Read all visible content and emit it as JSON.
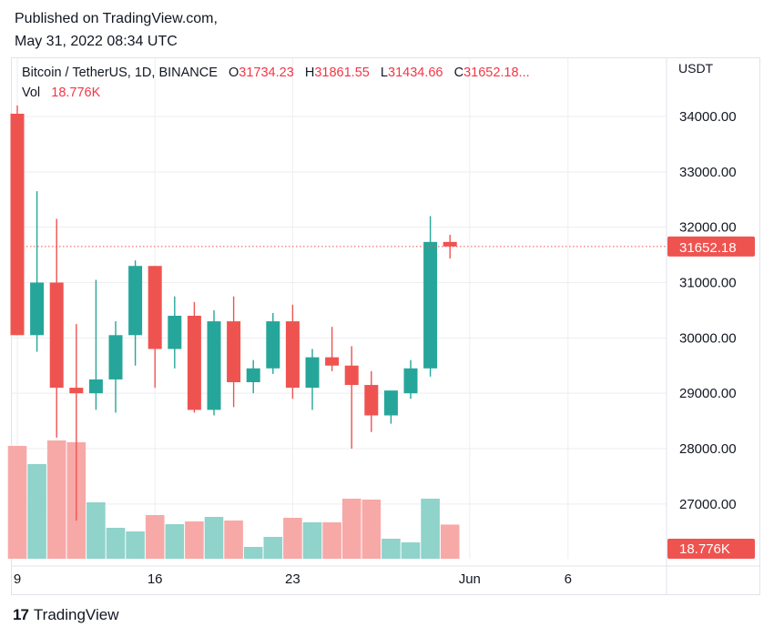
{
  "published": {
    "line1": "Published on TradingView.com,",
    "line2": "May 31, 2022 08:34 UTC"
  },
  "legend": {
    "title": "Bitcoin / TetherUS, 1D, BINANCE",
    "o_label": "O",
    "o_value": "31734.23",
    "h_label": "H",
    "h_value": "31861.55",
    "l_label": "L",
    "l_value": "31434.66",
    "c_label": "C",
    "c_value": "31652.18...",
    "vol_label": "Vol",
    "vol_value": "18.776K"
  },
  "currency": "USDT",
  "footer": {
    "brand": "TradingView",
    "brand_mark": "17"
  },
  "colors": {
    "up": "#26a69a",
    "down": "#ef5350",
    "vol_up": "#8fd3cb",
    "vol_down": "#f7a9a7",
    "grid": "#eceef2",
    "price_tag": "#ef5350"
  },
  "chart_data": {
    "type": "candlestick",
    "symbol": "Bitcoin / TetherUS",
    "interval": "1D",
    "exchange": "BINANCE",
    "ylim": [
      26000,
      34800
    ],
    "y_ticks": [
      27000,
      28000,
      29000,
      30000,
      31000,
      32000,
      33000,
      34000
    ],
    "y_tick_labels": [
      "27000.00",
      "28000.00",
      "29000.00",
      "30000.00",
      "31000.00",
      "32000.00",
      "33000.00",
      "34000.00"
    ],
    "x_ticks": [
      {
        "day": 0,
        "label": "9"
      },
      {
        "day": 7,
        "label": "16"
      },
      {
        "day": 14,
        "label": "23"
      },
      {
        "day": 23,
        "label": "Jun"
      },
      {
        "day": 28,
        "label": "6"
      }
    ],
    "last_price": 31652.18,
    "last_price_label": "31652.18",
    "last_volume_label": "18.776K",
    "candles": [
      {
        "date": "2022-05-09",
        "o": 34050,
        "h": 34200,
        "l": 30050,
        "c": 30050,
        "v": 62000
      },
      {
        "date": "2022-05-10",
        "o": 30050,
        "h": 32650,
        "l": 29750,
        "c": 31000,
        "v": 52000
      },
      {
        "date": "2022-05-11",
        "o": 31000,
        "h": 32150,
        "l": 28200,
        "c": 29100,
        "v": 65000
      },
      {
        "date": "2022-05-12",
        "o": 29100,
        "h": 30250,
        "l": 26700,
        "c": 29000,
        "v": 64000
      },
      {
        "date": "2022-05-13",
        "o": 29000,
        "h": 31050,
        "l": 28700,
        "c": 29250,
        "v": 31000
      },
      {
        "date": "2022-05-14",
        "o": 29250,
        "h": 30300,
        "l": 28650,
        "c": 30050,
        "v": 17000
      },
      {
        "date": "2022-05-15",
        "o": 30050,
        "h": 31400,
        "l": 29500,
        "c": 31300,
        "v": 15000
      },
      {
        "date": "2022-05-16",
        "o": 31300,
        "h": 31300,
        "l": 29100,
        "c": 29800,
        "v": 24000
      },
      {
        "date": "2022-05-17",
        "o": 29800,
        "h": 30750,
        "l": 29450,
        "c": 30400,
        "v": 19000
      },
      {
        "date": "2022-05-18",
        "o": 30400,
        "h": 30650,
        "l": 28650,
        "c": 28700,
        "v": 20500
      },
      {
        "date": "2022-05-19",
        "o": 28700,
        "h": 30500,
        "l": 28600,
        "c": 30300,
        "v": 23000
      },
      {
        "date": "2022-05-20",
        "o": 30300,
        "h": 30750,
        "l": 28750,
        "c": 29200,
        "v": 21000
      },
      {
        "date": "2022-05-21",
        "o": 29200,
        "h": 29600,
        "l": 29000,
        "c": 29450,
        "v": 6500
      },
      {
        "date": "2022-05-22",
        "o": 29450,
        "h": 30450,
        "l": 29350,
        "c": 30300,
        "v": 12000
      },
      {
        "date": "2022-05-23",
        "o": 30300,
        "h": 30600,
        "l": 28900,
        "c": 29100,
        "v": 22500
      },
      {
        "date": "2022-05-24",
        "o": 29100,
        "h": 29800,
        "l": 28700,
        "c": 29650,
        "v": 20000
      },
      {
        "date": "2022-05-25",
        "o": 29650,
        "h": 30200,
        "l": 29400,
        "c": 29500,
        "v": 20000
      },
      {
        "date": "2022-05-26",
        "o": 29500,
        "h": 29850,
        "l": 28000,
        "c": 29150,
        "v": 33000
      },
      {
        "date": "2022-05-27",
        "o": 29150,
        "h": 29400,
        "l": 28300,
        "c": 28600,
        "v": 32500
      },
      {
        "date": "2022-05-28",
        "o": 28600,
        "h": 29000,
        "l": 28450,
        "c": 29050,
        "v": 11000
      },
      {
        "date": "2022-05-29",
        "o": 29000,
        "h": 29600,
        "l": 28900,
        "c": 29450,
        "v": 9000
      },
      {
        "date": "2022-05-30",
        "o": 29450,
        "h": 32200,
        "l": 29300,
        "c": 31734,
        "v": 33000
      },
      {
        "date": "2022-05-31",
        "o": 31734,
        "h": 31862,
        "l": 31435,
        "c": 31652,
        "v": 18776
      }
    ]
  }
}
